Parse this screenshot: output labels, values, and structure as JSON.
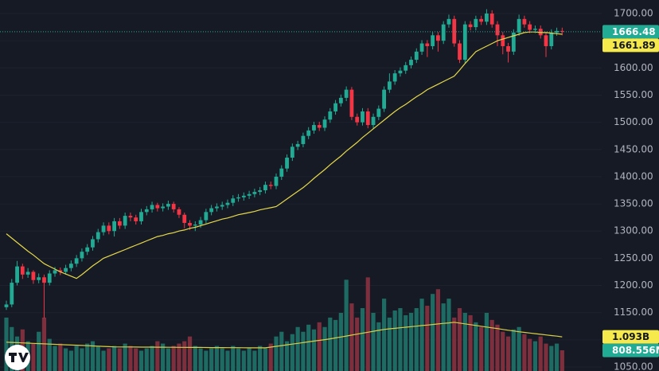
{
  "price_axis": {
    "ticks": [
      {
        "value": 1700,
        "label": "1700.00"
      },
      {
        "value": 1650,
        "label": "1650.00"
      },
      {
        "value": 1600,
        "label": "1600.00"
      },
      {
        "value": 1550,
        "label": "1550.00"
      },
      {
        "value": 1500,
        "label": "1500.00"
      },
      {
        "value": 1450,
        "label": "1450.00"
      },
      {
        "value": 1400,
        "label": "1400.00"
      },
      {
        "value": 1350,
        "label": "1350.00"
      },
      {
        "value": 1300,
        "label": "1300.00"
      },
      {
        "value": 1250,
        "label": "1250.00"
      },
      {
        "value": 1200,
        "label": "1200.00"
      },
      {
        "value": 1150,
        "label": "1150.00"
      },
      {
        "value": 1100,
        "label": "1100.00"
      },
      {
        "value": 1050,
        "label": "1050.00"
      }
    ]
  },
  "candles": {
    "open": [
      1160,
      1165,
      1205,
      1235,
      1220,
      1225,
      1210,
      1215,
      1205,
      1222,
      1228,
      1225,
      1232,
      1240,
      1250,
      1262,
      1270,
      1285,
      1298,
      1310,
      1300,
      1318,
      1310,
      1328,
      1325,
      1318,
      1335,
      1340,
      1348,
      1342,
      1345,
      1350,
      1340,
      1330,
      1315,
      1310,
      1312,
      1320,
      1335,
      1342,
      1345,
      1348,
      1352,
      1360,
      1362,
      1365,
      1368,
      1372,
      1375,
      1385,
      1383,
      1400,
      1415,
      1435,
      1455,
      1460,
      1475,
      1485,
      1495,
      1490,
      1505,
      1520,
      1535,
      1545,
      1560,
      1510,
      1500,
      1520,
      1495,
      1510,
      1525,
      1560,
      1575,
      1590,
      1595,
      1605,
      1615,
      1630,
      1645,
      1640,
      1660,
      1650,
      1680,
      1690,
      1645,
      1615,
      1680,
      1675,
      1690,
      1685,
      1700,
      1680,
      1660,
      1640,
      1630,
      1665,
      1690,
      1680,
      1670,
      1672,
      1660,
      1640,
      1665,
      1668
    ],
    "high": [
      1172,
      1212,
      1245,
      1240,
      1232,
      1228,
      1222,
      1220,
      1228,
      1234,
      1233,
      1238,
      1246,
      1256,
      1268,
      1276,
      1291,
      1304,
      1316,
      1316,
      1324,
      1324,
      1334,
      1334,
      1330,
      1341,
      1346,
      1354,
      1352,
      1351,
      1356,
      1354,
      1344,
      1334,
      1320,
      1318,
      1326,
      1341,
      1348,
      1351,
      1354,
      1358,
      1366,
      1368,
      1371,
      1374,
      1378,
      1381,
      1391,
      1391,
      1406,
      1421,
      1441,
      1461,
      1466,
      1481,
      1491,
      1501,
      1501,
      1511,
      1526,
      1541,
      1551,
      1566,
      1565,
      1516,
      1526,
      1526,
      1516,
      1531,
      1566,
      1590,
      1596,
      1601,
      1611,
      1621,
      1636,
      1651,
      1651,
      1666,
      1666,
      1686,
      1698,
      1696,
      1651,
      1686,
      1686,
      1696,
      1696,
      1708,
      1706,
      1686,
      1666,
      1646,
      1671,
      1698,
      1696,
      1686,
      1678,
      1678,
      1666,
      1671,
      1674,
      1674
    ],
    "low": [
      1155,
      1160,
      1200,
      1212,
      1214,
      1203,
      1204,
      1140,
      1200,
      1216,
      1219,
      1220,
      1226,
      1234,
      1244,
      1256,
      1264,
      1279,
      1292,
      1294,
      1290,
      1304,
      1304,
      1318,
      1312,
      1312,
      1329,
      1334,
      1336,
      1336,
      1339,
      1334,
      1324,
      1305,
      1302,
      1300,
      1306,
      1314,
      1329,
      1336,
      1339,
      1342,
      1346,
      1354,
      1356,
      1359,
      1362,
      1366,
      1369,
      1377,
      1377,
      1394,
      1409,
      1429,
      1449,
      1454,
      1469,
      1479,
      1484,
      1484,
      1499,
      1514,
      1529,
      1539,
      1504,
      1494,
      1494,
      1489,
      1489,
      1504,
      1519,
      1554,
      1569,
      1584,
      1589,
      1599,
      1609,
      1624,
      1620,
      1634,
      1630,
      1644,
      1674,
      1639,
      1609,
      1609,
      1669,
      1669,
      1679,
      1679,
      1674,
      1640,
      1625,
      1610,
      1624,
      1659,
      1674,
      1664,
      1664,
      1654,
      1620,
      1634,
      1659,
      1660
    ],
    "close": [
      1165,
      1205,
      1235,
      1220,
      1225,
      1210,
      1215,
      1205,
      1222,
      1228,
      1225,
      1232,
      1240,
      1250,
      1262,
      1270,
      1285,
      1298,
      1310,
      1300,
      1318,
      1310,
      1328,
      1325,
      1318,
      1335,
      1340,
      1348,
      1342,
      1345,
      1350,
      1340,
      1330,
      1315,
      1310,
      1312,
      1320,
      1335,
      1342,
      1345,
      1348,
      1352,
      1360,
      1362,
      1365,
      1368,
      1372,
      1375,
      1385,
      1383,
      1400,
      1415,
      1435,
      1455,
      1460,
      1475,
      1485,
      1495,
      1490,
      1505,
      1520,
      1535,
      1545,
      1560,
      1510,
      1500,
      1520,
      1495,
      1510,
      1525,
      1560,
      1575,
      1590,
      1595,
      1605,
      1615,
      1630,
      1645,
      1640,
      1660,
      1650,
      1680,
      1690,
      1645,
      1615,
      1680,
      1675,
      1690,
      1685,
      1700,
      1680,
      1660,
      1640,
      1630,
      1665,
      1690,
      1680,
      1670,
      1672,
      1660,
      1640,
      1665,
      1668,
      1666.48
    ]
  },
  "ma": [
    1295,
    1287,
    1279,
    1271,
    1263,
    1256,
    1248,
    1240,
    1235,
    1230,
    1225,
    1221,
    1217,
    1213,
    1220,
    1228,
    1236,
    1243,
    1250,
    1254,
    1258,
    1262,
    1266,
    1270,
    1274,
    1278,
    1282,
    1286,
    1290,
    1292,
    1295,
    1297,
    1300,
    1302,
    1305,
    1307,
    1310,
    1313,
    1316,
    1319,
    1322,
    1324,
    1327,
    1330,
    1332,
    1334,
    1336,
    1339,
    1341,
    1343,
    1345,
    1352,
    1359,
    1366,
    1373,
    1380,
    1388,
    1397,
    1405,
    1413,
    1422,
    1430,
    1438,
    1447,
    1455,
    1463,
    1472,
    1480,
    1488,
    1496,
    1504,
    1512,
    1520,
    1527,
    1533,
    1540,
    1547,
    1553,
    1560,
    1565,
    1570,
    1575,
    1580,
    1585,
    1596,
    1608,
    1619,
    1630,
    1635,
    1640,
    1645,
    1650,
    1653,
    1656,
    1659,
    1662,
    1665,
    1666,
    1666,
    1665,
    1665,
    1664,
    1663,
    1661.89
  ],
  "volume": [
    1500,
    1300,
    1100,
    1250,
    1000,
    950,
    1200,
    1500,
    1050,
    900,
    950,
    850,
    800,
    900,
    850,
    950,
    1000,
    900,
    800,
    850,
    900,
    850,
    950,
    900,
    850,
    800,
    850,
    900,
    1000,
    950,
    850,
    900,
    950,
    1000,
    1100,
    900,
    850,
    800,
    850,
    900,
    850,
    800,
    900,
    850,
    800,
    850,
    800,
    900,
    850,
    950,
    1100,
    1200,
    1000,
    1150,
    1300,
    1200,
    1350,
    1250,
    1400,
    1300,
    1500,
    1450,
    1600,
    2300,
    1800,
    1500,
    1700,
    2350,
    1600,
    1400,
    1900,
    1500,
    1650,
    1700,
    1550,
    1600,
    1700,
    1900,
    1750,
    2000,
    2100,
    1800,
    1900,
    1500,
    1700,
    1600,
    1550,
    1400,
    1300,
    1600,
    1450,
    1350,
    1200,
    1100,
    1250,
    1300,
    1150,
    1050,
    1000,
    1100,
    950,
    900,
    950,
    808.556
  ],
  "volume_ma": [
    980,
    975,
    970,
    965,
    960,
    955,
    950,
    945,
    940,
    935,
    930,
    925,
    920,
    915,
    910,
    905,
    900,
    895,
    890,
    885,
    880,
    879,
    878,
    878,
    877,
    876,
    875,
    875,
    874,
    873,
    872,
    872,
    871,
    870,
    869,
    869,
    868,
    867,
    866,
    866,
    865,
    864,
    863,
    863,
    862,
    861,
    861,
    860,
    860,
    876,
    892,
    908,
    924,
    939,
    955,
    971,
    987,
    1003,
    1018,
    1034,
    1050,
    1070,
    1090,
    1110,
    1130,
    1150,
    1170,
    1190,
    1210,
    1230,
    1250,
    1262,
    1273,
    1285,
    1296,
    1308,
    1319,
    1331,
    1342,
    1354,
    1365,
    1377,
    1388,
    1400,
    1383,
    1367,
    1350,
    1333,
    1317,
    1300,
    1283,
    1267,
    1250,
    1233,
    1217,
    1200,
    1187,
    1173,
    1160,
    1147,
    1133,
    1120,
    1107,
    1093
  ],
  "last_volume_label": "808.556M",
  "last_volume_ma_label": "1.093B"
}
